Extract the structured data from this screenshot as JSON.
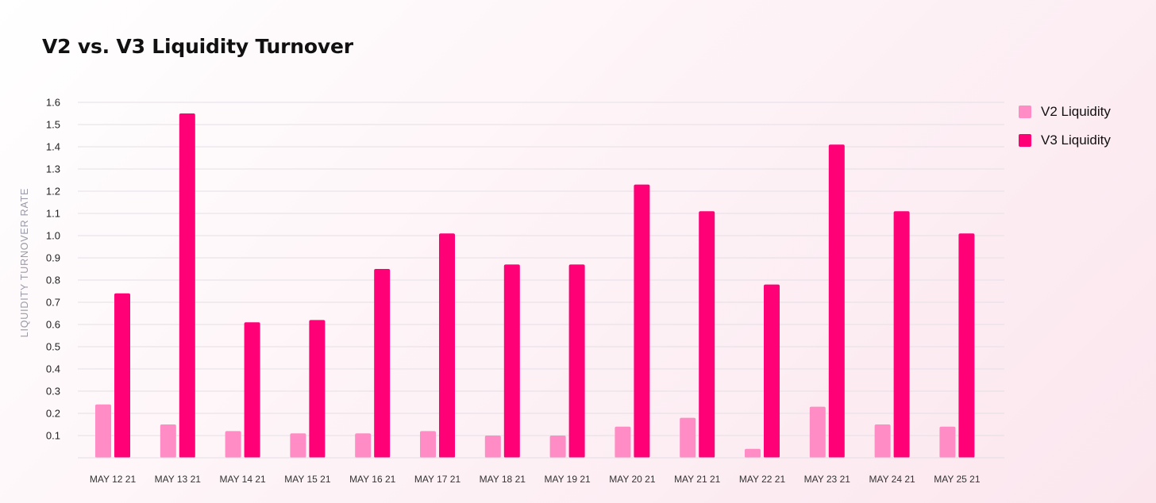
{
  "title": "V2 vs. V3 Liquidity Turnover",
  "colors": {
    "v2": "#ff8cc4",
    "v3": "#ff0077"
  },
  "legend": [
    {
      "name": "V2 Liquidity",
      "color": "#ff8cc4"
    },
    {
      "name": "V3 Liquidity",
      "color": "#ff0077"
    }
  ],
  "chart_data": {
    "type": "bar",
    "title": "V2 vs. V3 Liquidity Turnover",
    "xlabel": "",
    "ylabel": "LIQUIDITY TURNOVER RATE",
    "ylim": [
      0,
      1.6
    ],
    "yticks": [
      "0.1",
      "0.2",
      "0.3",
      "0.4",
      "0.5",
      "0.6",
      "0.7",
      "0.8",
      "0.9",
      "1.0",
      "1.1",
      "1.2",
      "1.3",
      "1.4",
      "1.5",
      "1.6"
    ],
    "grid": true,
    "legend_position": "top-right",
    "categories": [
      "MAY 12 21",
      "MAY 13 21",
      "MAY 14 21",
      "MAY 15 21",
      "MAY 16 21",
      "MAY 17 21",
      "MAY 18 21",
      "MAY 19 21",
      "MAY 20 21",
      "MAY 21 21",
      "MAY 22 21",
      "MAY 23 21",
      "MAY 24 21",
      "MAY 25 21"
    ],
    "series": [
      {
        "name": "V2 Liquidity",
        "values": [
          0.24,
          0.15,
          0.12,
          0.11,
          0.11,
          0.12,
          0.1,
          0.1,
          0.14,
          0.18,
          0.04,
          0.23,
          0.15,
          0.14
        ]
      },
      {
        "name": "V3 Liquidity",
        "values": [
          0.74,
          1.55,
          0.61,
          0.62,
          0.85,
          1.01,
          0.87,
          0.87,
          1.23,
          1.11,
          0.78,
          1.41,
          1.11,
          1.01
        ]
      }
    ]
  }
}
